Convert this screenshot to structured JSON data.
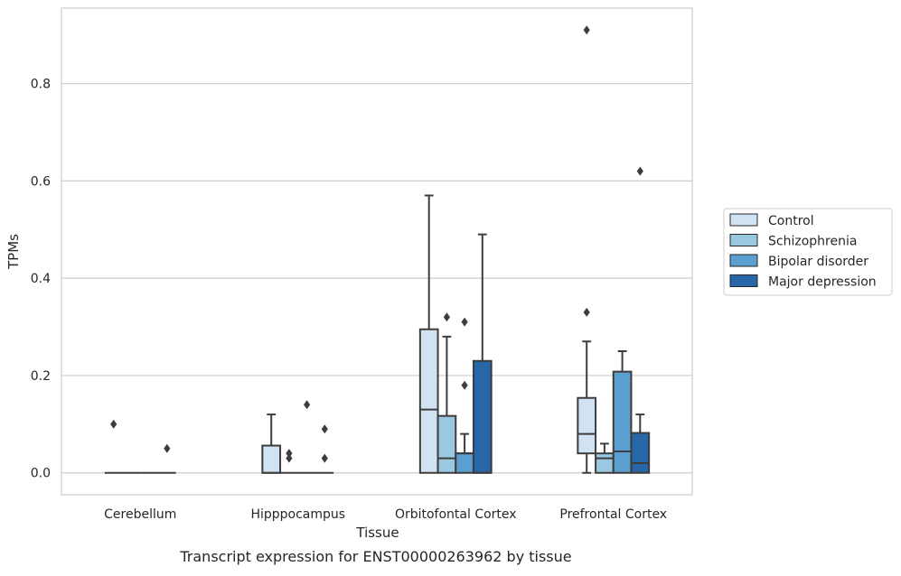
{
  "chart_data": {
    "type": "boxplot",
    "caption": "Transcript expression for ENST00000263962 by tissue",
    "xlabel": "Tissue",
    "ylabel": "TPMs",
    "ylim": [
      -0.045,
      0.955
    ],
    "yticks": [
      0.0,
      0.2,
      0.4,
      0.6,
      0.8
    ],
    "ytick_labels": [
      "0.0",
      "0.2",
      "0.4",
      "0.6",
      "0.8"
    ],
    "grid": "horizontal",
    "legend_position": "right",
    "categories": [
      "Cerebellum",
      "Hipppocampus",
      "Orbitofontal Cortex",
      "Prefrontal Cortex"
    ],
    "series": [
      {
        "name": "Control",
        "color": "#d1e2f2",
        "boxes": [
          {
            "q1": 0,
            "median": 0,
            "q3": 0,
            "whisker_low": 0,
            "whisker_high": 0,
            "outliers": [
              0.1
            ]
          },
          {
            "q1": 0,
            "median": 0,
            "q3": 0.056,
            "whisker_low": 0,
            "whisker_high": 0.12,
            "outliers": []
          },
          {
            "q1": 0,
            "median": 0.13,
            "q3": 0.295,
            "whisker_low": 0,
            "whisker_high": 0.57,
            "outliers": []
          },
          {
            "q1": 0.04,
            "median": 0.08,
            "q3": 0.154,
            "whisker_low": 0,
            "whisker_high": 0.27,
            "outliers": [
              0.33,
              0.91
            ]
          }
        ]
      },
      {
        "name": "Schizophrenia",
        "color": "#9ac8e0",
        "boxes": [
          {
            "q1": 0,
            "median": 0,
            "q3": 0,
            "whisker_low": 0,
            "whisker_high": 0,
            "outliers": []
          },
          {
            "q1": 0,
            "median": 0,
            "q3": 0,
            "whisker_low": 0,
            "whisker_high": 0,
            "outliers": [
              0.03,
              0.04
            ]
          },
          {
            "q1": 0,
            "median": 0.03,
            "q3": 0.117,
            "whisker_low": 0,
            "whisker_high": 0.28,
            "outliers": [
              0.32
            ]
          },
          {
            "q1": 0,
            "median": 0.03,
            "q3": 0.04,
            "whisker_low": 0,
            "whisker_high": 0.06,
            "outliers": []
          }
        ]
      },
      {
        "name": "Bipolar disorder",
        "color": "#5a9fcf",
        "boxes": [
          {
            "q1": 0,
            "median": 0,
            "q3": 0,
            "whisker_low": 0,
            "whisker_high": 0,
            "outliers": []
          },
          {
            "q1": 0,
            "median": 0,
            "q3": 0,
            "whisker_low": 0,
            "whisker_high": 0,
            "outliers": [
              0.14
            ]
          },
          {
            "q1": 0,
            "median": 0.04,
            "q3": 0.04,
            "whisker_low": 0,
            "whisker_high": 0.08,
            "outliers": [
              0.18,
              0.31
            ]
          },
          {
            "q1": 0,
            "median": 0.044,
            "q3": 0.208,
            "whisker_low": 0,
            "whisker_high": 0.25,
            "outliers": []
          }
        ]
      },
      {
        "name": "Major depression",
        "color": "#2767a7",
        "boxes": [
          {
            "q1": 0,
            "median": 0,
            "q3": 0,
            "whisker_low": 0,
            "whisker_high": 0,
            "outliers": [
              0.05
            ]
          },
          {
            "q1": 0,
            "median": 0,
            "q3": 0,
            "whisker_low": 0,
            "whisker_high": 0,
            "outliers": [
              0.03,
              0.09
            ]
          },
          {
            "q1": 0,
            "median": 0,
            "q3": 0.23,
            "whisker_low": 0,
            "whisker_high": 0.49,
            "outliers": []
          },
          {
            "q1": 0,
            "median": 0.02,
            "q3": 0.082,
            "whisker_low": 0,
            "whisker_high": 0.12,
            "outliers": [
              0.62
            ]
          }
        ]
      }
    ]
  }
}
